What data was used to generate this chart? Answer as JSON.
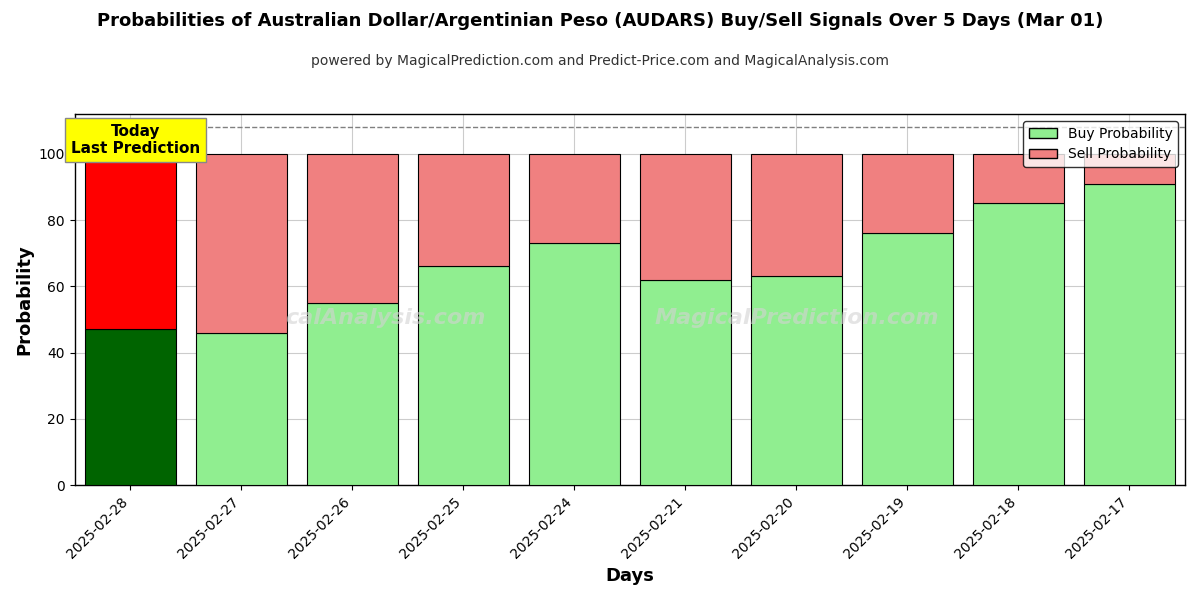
{
  "title": "Probabilities of Australian Dollar/Argentinian Peso (AUDARS) Buy/Sell Signals Over 5 Days (Mar 01)",
  "subtitle": "powered by MagicalPrediction.com and Predict-Price.com and MagicalAnalysis.com",
  "xlabel": "Days",
  "ylabel": "Probability",
  "watermark1": "calAnalysis.com",
  "watermark2": "MagicalPrediction.com",
  "dates": [
    "2025-02-28",
    "2025-02-27",
    "2025-02-26",
    "2025-02-25",
    "2025-02-24",
    "2025-02-21",
    "2025-02-20",
    "2025-02-19",
    "2025-02-18",
    "2025-02-17"
  ],
  "buy_values": [
    47,
    46,
    55,
    66,
    73,
    62,
    63,
    76,
    85,
    91
  ],
  "sell_values": [
    53,
    54,
    45,
    34,
    27,
    38,
    37,
    24,
    15,
    9
  ],
  "buy_color_today": "#006400",
  "sell_color_today": "#ff0000",
  "buy_color_normal": "#90EE90",
  "sell_color_normal": "#F08080",
  "today_box_color": "#ffff00",
  "today_box_text": "Today\nLast Prediction",
  "legend_buy_label": "Buy Probability",
  "legend_sell_label": "Sell Probability",
  "ylim": [
    0,
    112
  ],
  "yticks": [
    0,
    20,
    40,
    60,
    80,
    100
  ],
  "bar_edge_color": "#000000",
  "bar_linewidth": 0.8,
  "grid_color": "#cccccc",
  "background_color": "#ffffff",
  "dashed_line_y": 108,
  "title_fontsize": 13,
  "subtitle_fontsize": 10,
  "axis_label_fontsize": 13,
  "tick_fontsize": 10
}
